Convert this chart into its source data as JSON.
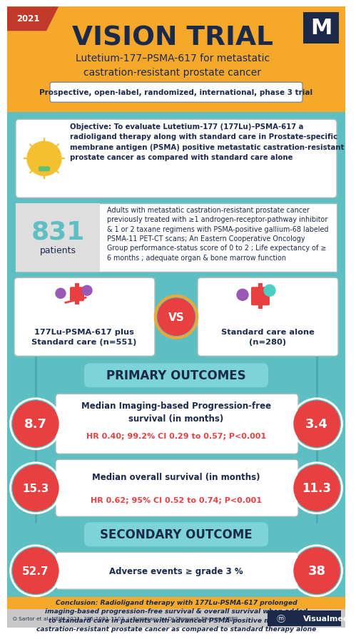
{
  "bg_yellow": "#F5A82A",
  "bg_teal": "#5DBFC2",
  "title": "VISION TRIAL",
  "year": "2021",
  "subtitle": "Lutetium-177–PSMA-617 for metastatic\ncastration-resistant prostate cancer",
  "trial_type": "Prospective, open-label, randomized, international, phase 3 trial",
  "objective": "Objective: To evaluate Lutetium-177 (177Lu)–PSMA-617 a\nradioligand therapy along with standard care in Prostate-specific\nmembrane antigen (PSMA) positive metastatic castration-resistant\nprostate cancer as compared with standard care alone",
  "n_patients": "831",
  "patients_label": "patients",
  "inclusion": "Adults with metastatic castration-resistant prostate cancer\npreviously treated with ≥1 androgen-receptor-pathway inhibitor\n& 1 or 2 taxane regimens with PSMA-positive gallium-68 labeled\nPSMA-11 PET-CT scans; An Eastern Cooperative Oncology\nGroup performance-status score of 0 to 2 ; Life expectancy of ≥\n6 months ; adequate organ & bone marrow function",
  "arm1": "177Lu-PSMA-617 plus\nStandard care (n=551)",
  "arm2": "Standard care alone\n(n=280)",
  "vs_text": "VS",
  "primary_outcomes_title": "PRIMARY OUTCOMES",
  "outcome1_title": "Median Imaging-based Progression-free\nsurvival (in months)",
  "outcome1_stat": "HR 0.40; 99.2% CI 0.29 to 0.57; P<0.001",
  "outcome1_left": "8.7",
  "outcome1_right": "3.4",
  "outcome2_title": "Median overall survival (in months)",
  "outcome2_stat": "HR 0.62; 95% CI 0.52 to 0.74; P<0.001",
  "outcome2_left": "15.3",
  "outcome2_right": "11.3",
  "secondary_outcome_title": "SECONDARY OUTCOME",
  "outcome3_title": "Adverse events ≥ grade 3 %",
  "outcome3_left": "52.7",
  "outcome3_right": "38",
  "conclusion": "Conclusion: Radioligand therapy with 177Lu-PSMA-617 prolonged\nimaging-based progression-free survival & overall survival when added\nto standard care in patients with advanced PSMA-positive metastatic\ncastration-resistant prostate cancer as compared to standard therapy alone",
  "footer_left": "O Sartor et al. NEJM 2021; 385:1091-1103  |  Summary by Dr.Shreyash Bhoyar, MBBS",
  "footer_right": "ⓜ Visualmed",
  "circle_color": "#E84040",
  "dark_navy": "#1B2A4A",
  "red_text": "#E84040",
  "teal_box_light": "#7DCFD2",
  "box_border": "#9ABCBE",
  "header_yellow": "#F5A82A",
  "section_teal": "#7DD4D7",
  "grey_bg": "#D6D6D6"
}
